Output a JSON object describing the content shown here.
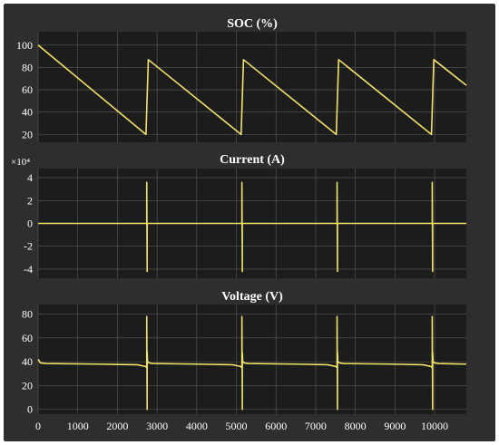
{
  "style": {
    "figure_bg": "#2e2e2e",
    "axes_bg": "#1c1c1c",
    "grid": "#5a5a5a",
    "line": "#f0e36a",
    "text": "#ffffff"
  },
  "chart_data": [
    {
      "type": "line",
      "title": "SOC (%)",
      "xlabel": "",
      "ylabel": "",
      "xlim": [
        0,
        10800
      ],
      "ylim": [
        13,
        112
      ],
      "yticks": [
        20,
        40,
        60,
        80,
        100
      ],
      "ytick_labels": [
        "20",
        "40",
        "60",
        "80",
        "100"
      ],
      "grid": true,
      "series": [
        {
          "x": [
            0,
            2720,
            2780,
            5120,
            5180,
            7520,
            7580,
            9920,
            9980,
            10800
          ],
          "y": [
            100,
            20,
            87,
            20,
            87,
            20,
            87,
            20,
            87,
            64
          ]
        }
      ]
    },
    {
      "type": "line",
      "title": "Current (A)",
      "xlabel": "",
      "ylabel": "",
      "y_exponent_label": "×10⁴",
      "xlim": [
        0,
        10800
      ],
      "ylim": [
        -4.8,
        4.8
      ],
      "yticks": [
        -4,
        -2,
        0,
        2,
        4
      ],
      "ytick_labels": [
        "-4",
        "-2",
        "0",
        "2",
        "4"
      ],
      "grid": true,
      "series": [
        {
          "x": [
            0,
            2740,
            2740,
            2750,
            2750,
            5140,
            5140,
            5150,
            5150,
            7540,
            7540,
            7550,
            7550,
            9940,
            9940,
            9950,
            9950,
            10800
          ],
          "y": [
            0,
            0,
            3.6,
            -4.2,
            0,
            0,
            3.6,
            -4.2,
            0,
            0,
            3.6,
            -4.2,
            0,
            0,
            3.6,
            -4.2,
            0,
            0
          ]
        }
      ]
    },
    {
      "type": "line",
      "title": "Voltage (V)",
      "xlabel": "",
      "ylabel": "",
      "xlim": [
        0,
        10800
      ],
      "ylim": [
        -4,
        88
      ],
      "yticks": [
        0,
        20,
        40,
        60,
        80
      ],
      "ytick_labels": [
        "0",
        "20",
        "40",
        "60",
        "80"
      ],
      "xticks": [
        0,
        1000,
        2000,
        3000,
        4000,
        5000,
        6000,
        7000,
        8000,
        9000,
        10000
      ],
      "xtick_labels": [
        "0",
        "1000",
        "2000",
        "3000",
        "4000",
        "5000",
        "6000",
        "7000",
        "8000",
        "9000",
        "10000"
      ],
      "grid": true,
      "series": [
        {
          "x": [
            0,
            60,
            200,
            1500,
            2500,
            2710,
            2740,
            2740,
            2750,
            2750,
            2760,
            2800,
            2900,
            4000,
            4900,
            5110,
            5140,
            5140,
            5150,
            5150,
            5160,
            5200,
            5300,
            6500,
            7300,
            7510,
            7540,
            7540,
            7550,
            7550,
            7560,
            7600,
            7700,
            8900,
            9700,
            9910,
            9940,
            9940,
            9950,
            9950,
            9960,
            10000,
            10100,
            10800
          ],
          "y": [
            42,
            39,
            38.5,
            38,
            37.5,
            36,
            35,
            78,
            0,
            48,
            40,
            39,
            38.5,
            38,
            37.5,
            36,
            35,
            78,
            0,
            48,
            40,
            39,
            38.5,
            38,
            37.5,
            36,
            35,
            78,
            0,
            48,
            40,
            39,
            38.5,
            38,
            37.5,
            36,
            35,
            78,
            0,
            48,
            40,
            39,
            38.5,
            38
          ]
        }
      ]
    }
  ]
}
